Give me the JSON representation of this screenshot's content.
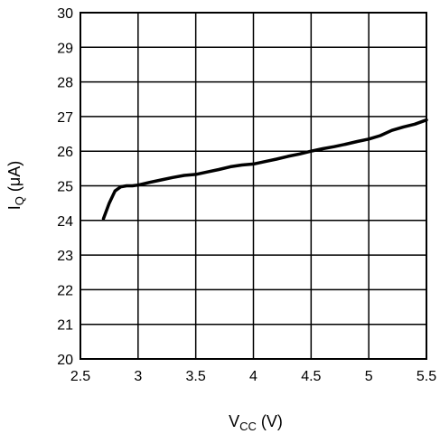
{
  "chart_data": {
    "type": "line",
    "xlabel_main": "V",
    "xlabel_sub": "CC",
    "xlabel_unit": " (V)",
    "ylabel_main": "I",
    "ylabel_sub": "Q",
    "ylabel_unit": " (μA)",
    "xlim": [
      2.5,
      5.5
    ],
    "ylim": [
      20,
      30
    ],
    "x_ticks": [
      "2.5",
      "3",
      "3.5",
      "4",
      "4.5",
      "5",
      "5.5"
    ],
    "y_ticks": [
      "20",
      "21",
      "22",
      "23",
      "24",
      "25",
      "26",
      "27",
      "28",
      "29",
      "30"
    ],
    "grid": true,
    "series": [
      {
        "x": [
          2.7,
          2.75,
          2.8,
          2.85,
          2.9,
          2.95,
          3.0,
          3.1,
          3.2,
          3.3,
          3.4,
          3.5,
          3.6,
          3.7,
          3.8,
          3.9,
          4.0,
          4.1,
          4.2,
          4.3,
          4.4,
          4.5,
          4.6,
          4.7,
          4.8,
          4.9,
          5.0,
          5.1,
          5.2,
          5.3,
          5.4,
          5.5
        ],
        "y": [
          24.05,
          24.5,
          24.85,
          24.97,
          25.0,
          25.0,
          25.02,
          25.1,
          25.17,
          25.24,
          25.3,
          25.33,
          25.4,
          25.47,
          25.55,
          25.6,
          25.63,
          25.7,
          25.77,
          25.85,
          25.92,
          26.0,
          26.07,
          26.13,
          26.2,
          26.28,
          26.35,
          26.45,
          26.6,
          26.7,
          26.78,
          26.9
        ]
      }
    ]
  }
}
